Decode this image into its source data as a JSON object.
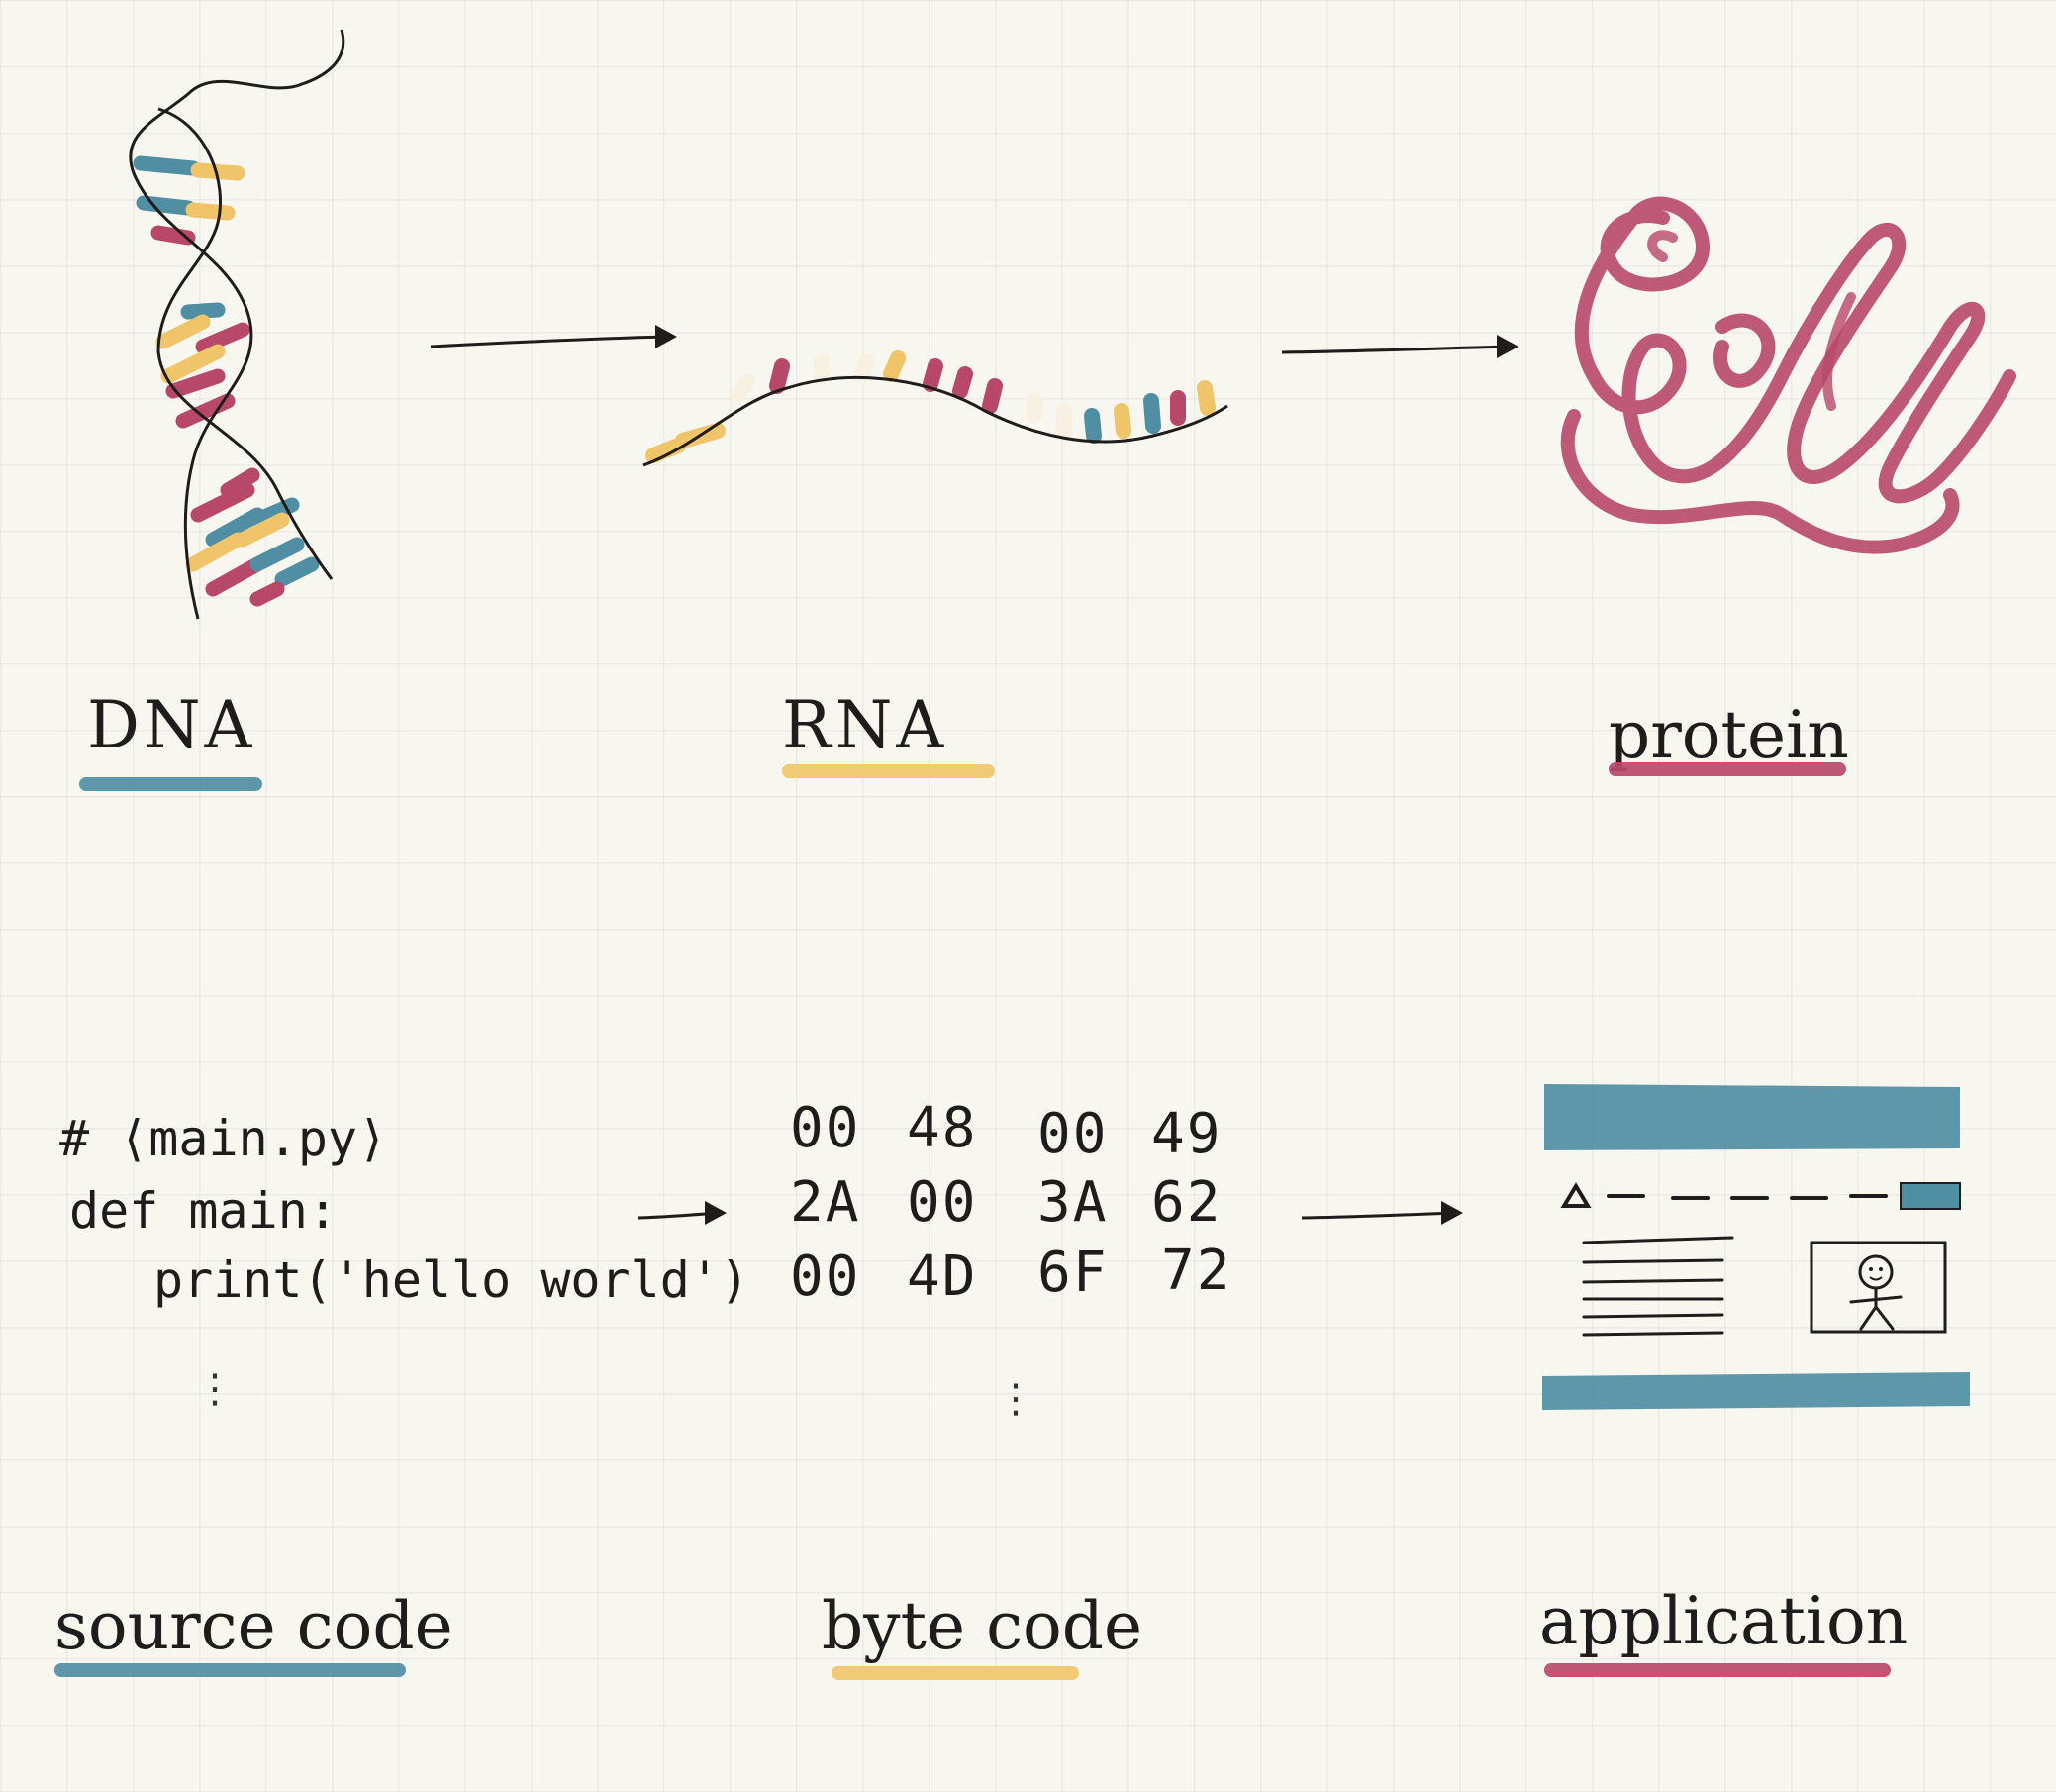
{
  "colors": {
    "blue": "#4f8ea3",
    "yellow": "#f0c56a",
    "red": "#b8486a",
    "ink": "#1f1c1b"
  },
  "biology": {
    "dna_label": "DNA",
    "rna_label": "RNA",
    "protein_label": "protein"
  },
  "software": {
    "source_label": "source code",
    "byte_label": "byte code",
    "app_label": "application",
    "source_lines": [
      "# ⟨main.py⟩",
      "def main:",
      "print('hello world')"
    ],
    "byte_rows": [
      [
        "00",
        "48",
        "00",
        "49"
      ],
      [
        "2A",
        "00",
        "3A",
        "62"
      ],
      [
        "00",
        "4D",
        "6F",
        "72"
      ]
    ],
    "ellipsis": "⋮"
  }
}
